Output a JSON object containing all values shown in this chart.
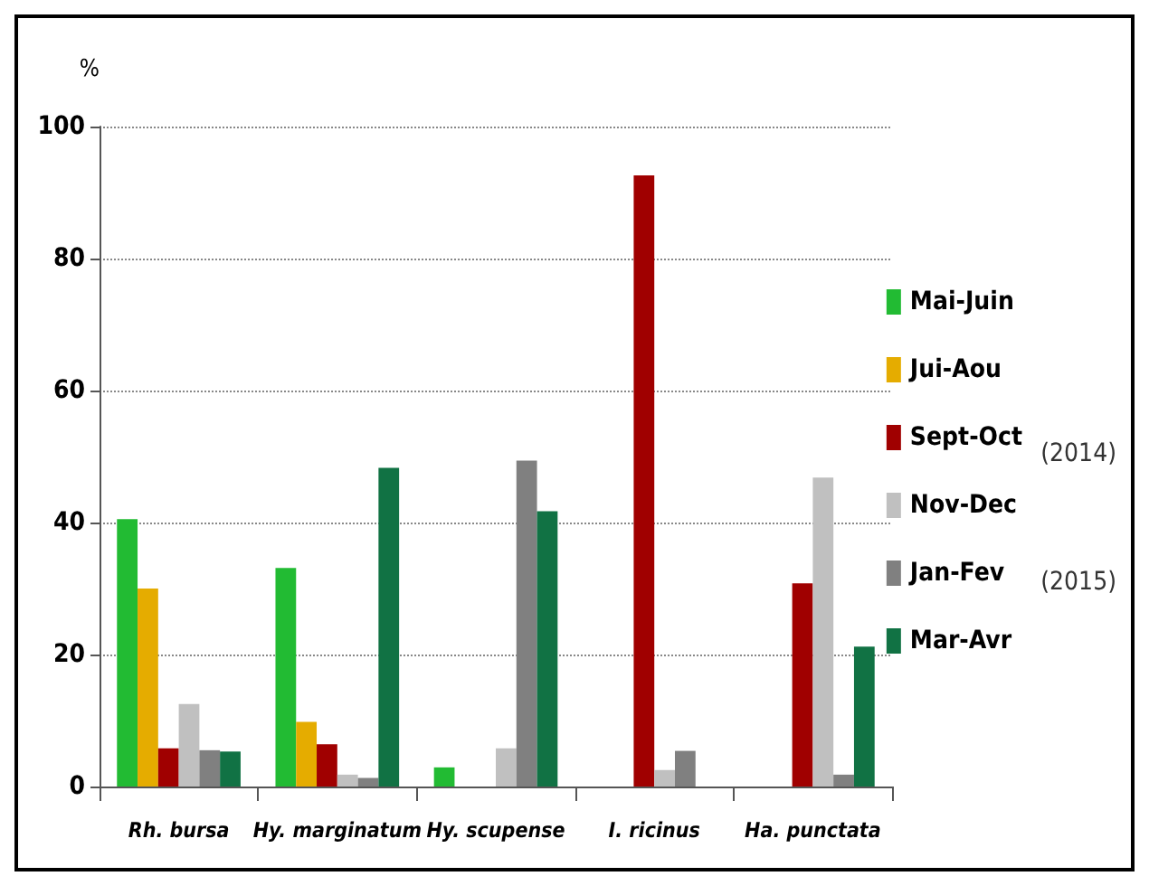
{
  "chart_data": {
    "type": "bar",
    "ylabel": "%",
    "categories": [
      "Rh. bursa",
      "Hy. marginatum",
      "Hy. scupense",
      "I. ricinus",
      "Ha. punctata"
    ],
    "series": [
      {
        "name": "Mai-Juin",
        "color": "#22bb33",
        "values": [
          40.5,
          33.1,
          2.9,
          0,
          0
        ]
      },
      {
        "name": "Jui-Aou",
        "color": "#e5ac00",
        "values": [
          30,
          9.8,
          0,
          0,
          0
        ]
      },
      {
        "name": "Sept-Oct",
        "color": "#a00000",
        "values": [
          5.8,
          6.4,
          0,
          92.6,
          30.8
        ]
      },
      {
        "name": "Nov-Dec",
        "color": "#c0c0c0",
        "values": [
          12.5,
          1.8,
          5.8,
          2.5,
          46.8
        ]
      },
      {
        "name": "Jan-Fev",
        "color": "#808080",
        "values": [
          5.5,
          1.3,
          49.4,
          5.4,
          1.8
        ]
      },
      {
        "name": "Mar-Avr",
        "color": "#117244",
        "values": [
          5.3,
          48.3,
          41.7,
          0,
          21.2
        ]
      }
    ],
    "ylim": [
      0,
      100
    ],
    "yticks": [
      0,
      20,
      40,
      60,
      80,
      100
    ],
    "grid": "y",
    "legend": "right",
    "annotations": [
      "(2014)",
      "(2015)"
    ]
  }
}
